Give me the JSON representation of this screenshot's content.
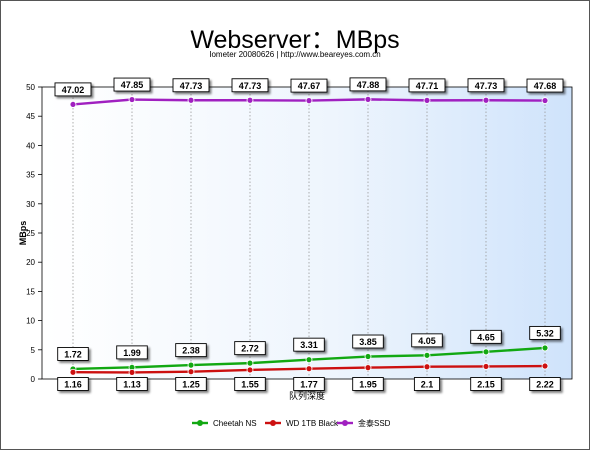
{
  "chart_data": {
    "type": "line",
    "title": "Webserver：MBps",
    "subtitle": "Iometer 20080626 | http://www.beareyes.com.cn",
    "xlabel": "队列深度",
    "ylabel": "MBps",
    "ylim": [
      0,
      50
    ],
    "yticks": [
      "0",
      "5",
      "10",
      "15",
      "20",
      "25",
      "30",
      "35",
      "40",
      "45",
      "50"
    ],
    "x_count": 9,
    "grid": "vertical dotted",
    "legend_position": "bottom",
    "series": [
      {
        "name": "Cheetah NS",
        "color": "#12a812",
        "values": [
          1.72,
          1.99,
          2.38,
          2.72,
          3.31,
          3.85,
          4.05,
          4.65,
          5.32
        ],
        "labels": [
          "1.72",
          "1.99",
          "2.38",
          "2.72",
          "3.31",
          "3.85",
          "4.05",
          "4.65",
          "5.32"
        ]
      },
      {
        "name": "WD 1TB Black",
        "color": "#cc1010",
        "values": [
          1.16,
          1.13,
          1.25,
          1.55,
          1.77,
          1.95,
          2.1,
          2.15,
          2.22
        ],
        "labels": [
          "1.16",
          "1.13",
          "1.25",
          "1.55",
          "1.77",
          "1.95",
          "2.1",
          "2.15",
          "2.22"
        ]
      },
      {
        "name": "金泰SSD",
        "color": "#a020c0",
        "values": [
          47.02,
          47.85,
          47.73,
          47.73,
          47.67,
          47.88,
          47.71,
          47.73,
          47.68
        ],
        "labels": [
          "47.02",
          "47.85",
          "47.73",
          "47.73",
          "47.67",
          "47.88",
          "47.71",
          "47.73",
          "47.68"
        ]
      }
    ]
  }
}
